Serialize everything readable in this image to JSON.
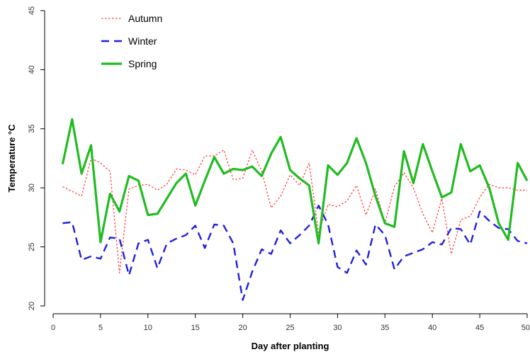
{
  "chart_data": {
    "type": "line",
    "title": "",
    "xlabel": "Day after planting",
    "ylabel": "Temperature °C",
    "xlim": [
      0,
      50
    ],
    "ylim": [
      20,
      45
    ],
    "x_ticks": [
      0,
      5,
      10,
      15,
      20,
      25,
      30,
      35,
      40,
      45,
      50
    ],
    "y_ticks": [
      20,
      25,
      30,
      35,
      40,
      45
    ],
    "grid": false,
    "legend_position": "top-left",
    "x": [
      1,
      2,
      3,
      4,
      5,
      6,
      7,
      8,
      9,
      10,
      11,
      12,
      13,
      14,
      15,
      16,
      17,
      18,
      19,
      20,
      21,
      22,
      23,
      24,
      25,
      26,
      27,
      28,
      29,
      30,
      31,
      32,
      33,
      34,
      35,
      36,
      37,
      38,
      39,
      40,
      41,
      42,
      43,
      44,
      45,
      46,
      47,
      48,
      49,
      50
    ],
    "series": [
      {
        "name": "Autumn",
        "color": "#ff4040",
        "dash": "dotted",
        "values": [
          30.1,
          29.7,
          29.3,
          32.5,
          32.1,
          31.4,
          22.8,
          29.9,
          30.2,
          30.3,
          29.8,
          30.3,
          31.6,
          31.5,
          31.1,
          32.7,
          32.7,
          33.2,
          30.7,
          30.8,
          33.2,
          31.4,
          28.3,
          29.3,
          31.1,
          30.2,
          32.1,
          26.2,
          28.6,
          28.4,
          28.9,
          30.2,
          27.7,
          29.9,
          27.0,
          30.1,
          31.3,
          30.0,
          27.8,
          26.2,
          29.1,
          24.4,
          27.3,
          27.6,
          29.2,
          30.3,
          30.0,
          30.0,
          29.8,
          29.8
        ]
      },
      {
        "name": "Winter",
        "color": "#2020e0",
        "dash": "dashed",
        "values": [
          27.0,
          27.1,
          23.9,
          24.2,
          24.0,
          25.8,
          25.7,
          22.6,
          25.3,
          25.6,
          23.2,
          25.3,
          25.7,
          26.0,
          26.8,
          24.9,
          26.9,
          26.8,
          25.3,
          20.5,
          22.9,
          24.8,
          24.4,
          26.4,
          25.3,
          26.0,
          26.8,
          28.5,
          26.9,
          23.3,
          22.8,
          24.7,
          23.5,
          26.9,
          26.0,
          23.1,
          24.2,
          24.5,
          24.8,
          25.4,
          25.2,
          26.6,
          26.5,
          25.2,
          28.0,
          27.2,
          26.6,
          26.5,
          25.5,
          25.3
        ]
      },
      {
        "name": "Spring",
        "color": "#22bb22",
        "dash": "solid",
        "values": [
          32.0,
          35.8,
          31.2,
          33.6,
          25.4,
          29.5,
          28.0,
          31.0,
          30.6,
          27.7,
          27.8,
          29.1,
          30.4,
          31.2,
          28.5,
          30.6,
          32.6,
          31.2,
          31.6,
          31.5,
          31.8,
          31.0,
          32.9,
          34.3,
          31.5,
          30.8,
          30.2,
          25.3,
          31.9,
          31.1,
          32.1,
          34.2,
          32.1,
          29.3,
          27.0,
          26.7,
          33.1,
          30.4,
          33.7,
          31.4,
          29.2,
          29.6,
          33.7,
          31.4,
          31.9,
          30.0,
          27.0,
          25.6,
          32.1,
          30.6
        ]
      }
    ]
  }
}
